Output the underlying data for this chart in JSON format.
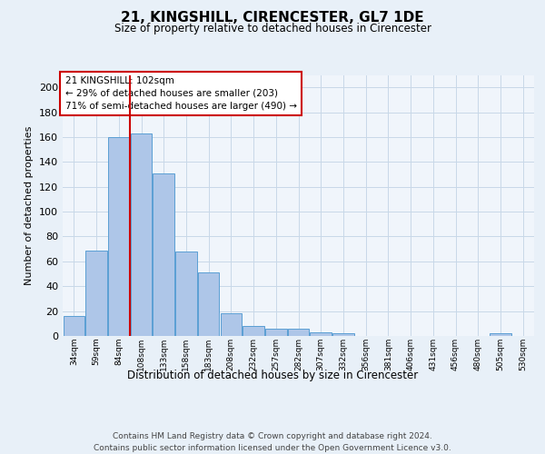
{
  "title": "21, KINGSHILL, CIRENCESTER, GL7 1DE",
  "subtitle": "Size of property relative to detached houses in Cirencester",
  "xlabel": "Distribution of detached houses by size in Cirencester",
  "ylabel": "Number of detached properties",
  "bar_labels": [
    "34sqm",
    "59sqm",
    "84sqm",
    "108sqm",
    "133sqm",
    "158sqm",
    "183sqm",
    "208sqm",
    "232sqm",
    "257sqm",
    "282sqm",
    "307sqm",
    "332sqm",
    "356sqm",
    "381sqm",
    "406sqm",
    "431sqm",
    "456sqm",
    "480sqm",
    "505sqm",
    "530sqm"
  ],
  "bar_values": [
    16,
    69,
    160,
    163,
    131,
    68,
    51,
    18,
    8,
    6,
    6,
    3,
    2,
    0,
    0,
    0,
    0,
    0,
    0,
    2,
    0
  ],
  "bar_color": "#aec6e8",
  "bar_edge_color": "#5a9fd4",
  "vline_x_index": 3,
  "vline_color": "#cc0000",
  "annotation_box_text": "21 KINGSHILL: 102sqm\n← 29% of detached houses are smaller (203)\n71% of semi-detached houses are larger (490) →",
  "ylim": [
    0,
    210
  ],
  "yticks": [
    0,
    20,
    40,
    60,
    80,
    100,
    120,
    140,
    160,
    180,
    200
  ],
  "footer_line1": "Contains HM Land Registry data © Crown copyright and database right 2024.",
  "footer_line2": "Contains public sector information licensed under the Open Government Licence v3.0.",
  "bg_color": "#e8f0f8",
  "plot_bg_color": "#f0f5fb",
  "grid_color": "#c8d8e8"
}
